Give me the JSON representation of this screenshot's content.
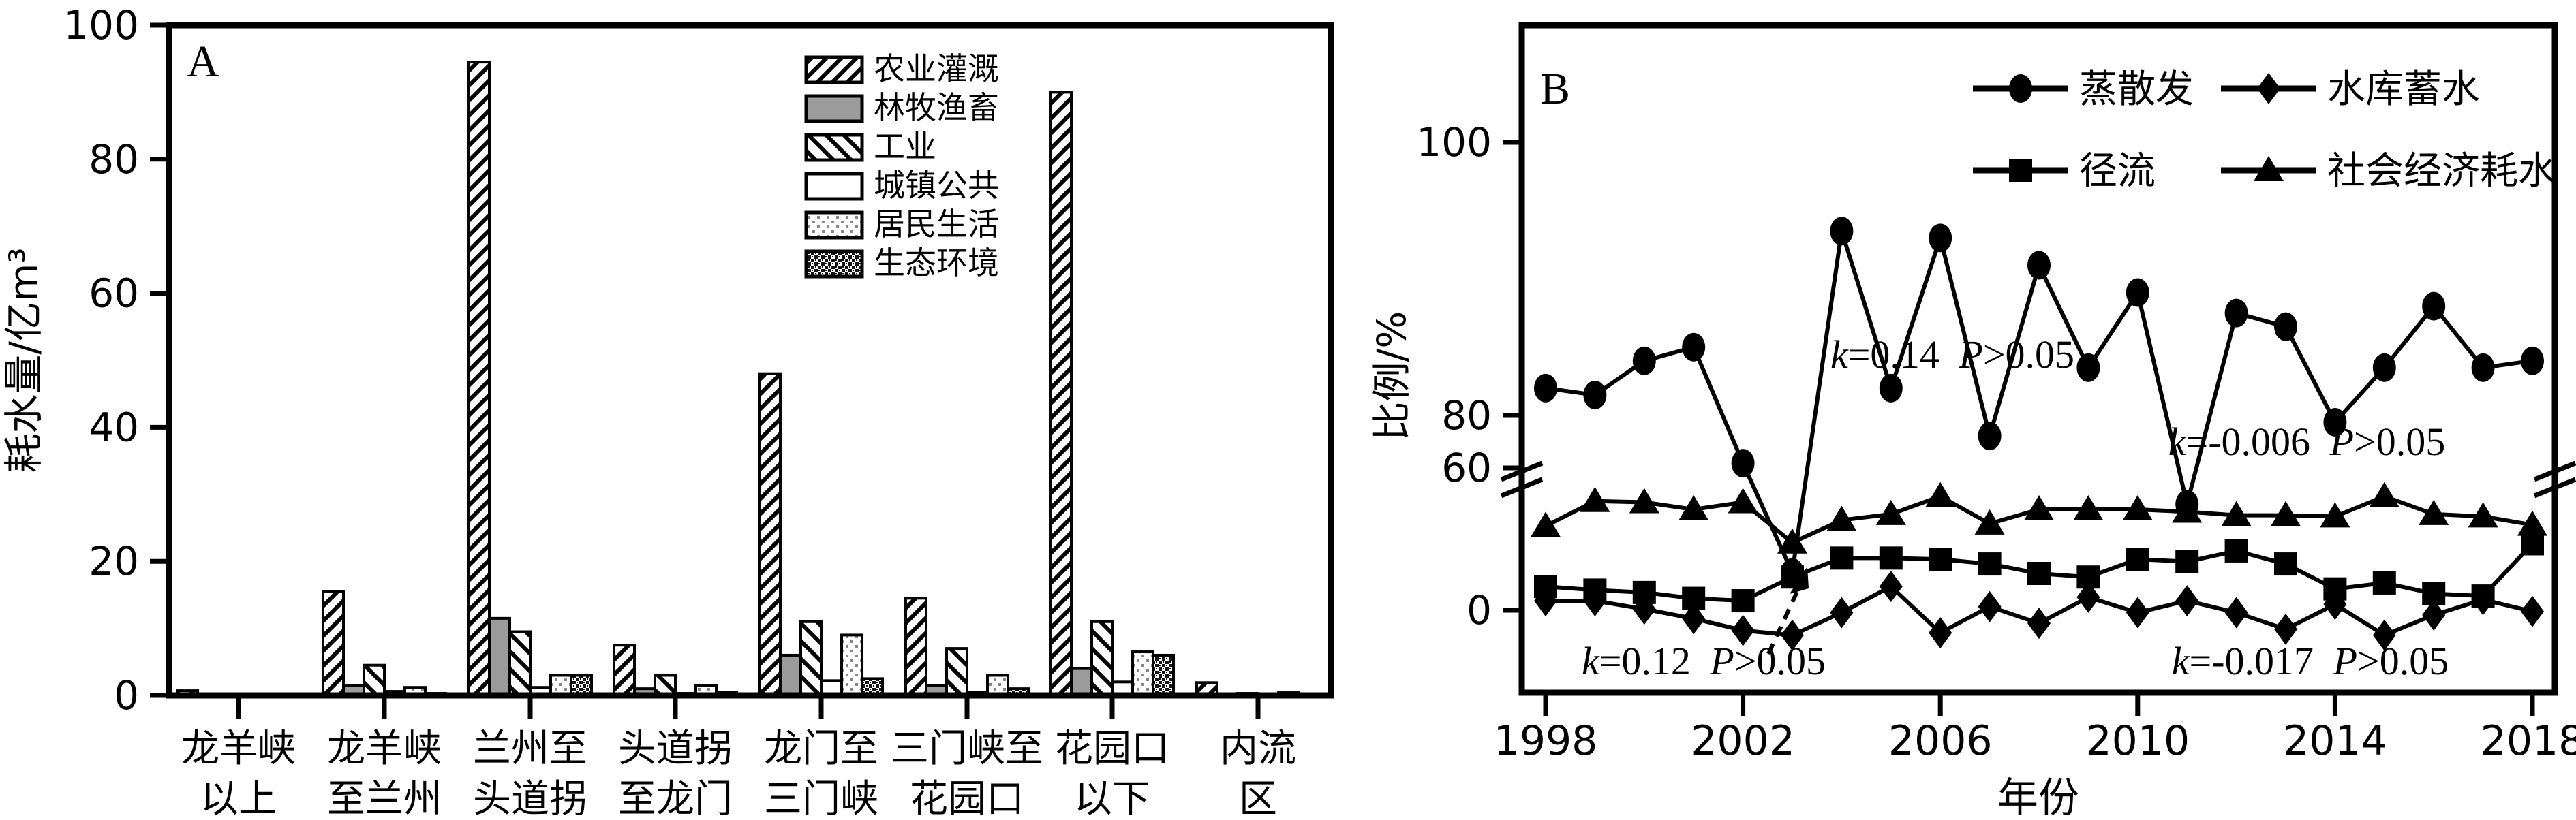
{
  "colors": {
    "ink": "#000000",
    "paper": "#ffffff",
    "gray_fill": "#9b9b9b",
    "stipple_light": "#888888",
    "stipple_dark": "#161616"
  },
  "chart_data": [
    {
      "type": "bar",
      "panel_label": "A",
      "title": "",
      "xlabel": "",
      "ylabel": "耗水量/亿m³",
      "ylim": [
        0,
        100
      ],
      "yticks": [
        0,
        20,
        40,
        60,
        80,
        100
      ],
      "grid": "off",
      "legend_position": "upper-middle-right-inside",
      "categories": [
        "龙羊峡\n以上",
        "龙羊峡\n至兰州",
        "兰州至\n头道拐",
        "头道拐\n至龙门",
        "龙门至\n三门峡",
        "三门峡至\n花园口",
        "花园口\n以下",
        "内流\n区"
      ],
      "series": [
        {
          "name": "农业灌溉",
          "fill": "hatch-forward",
          "values": [
            0.7,
            15.5,
            94.5,
            7.5,
            48,
            14.5,
            90,
            1.9
          ]
        },
        {
          "name": "林牧渔畜",
          "fill": "solid-gray",
          "values": [
            0.2,
            1.5,
            11.5,
            1.0,
            6.0,
            1.5,
            4.0,
            0.2
          ]
        },
        {
          "name": "工业",
          "fill": "hatch-back",
          "values": [
            0.1,
            4.5,
            9.5,
            3.0,
            11.0,
            7.0,
            11.0,
            0.3
          ]
        },
        {
          "name": "城镇公共",
          "fill": "solid-white",
          "values": [
            0.05,
            0.6,
            1.2,
            0.3,
            2.2,
            0.5,
            2.0,
            0.15
          ]
        },
        {
          "name": "居民生活",
          "fill": "stipple-light",
          "values": [
            0.1,
            1.2,
            3.0,
            1.5,
            9.0,
            3.0,
            6.5,
            0.4
          ]
        },
        {
          "name": "生态环境",
          "fill": "stipple-dark",
          "values": [
            0.05,
            0.3,
            3.0,
            0.5,
            2.5,
            1.0,
            6.0,
            0.1
          ]
        }
      ]
    },
    {
      "type": "line",
      "panel_label": "B",
      "title": "",
      "xlabel": "年份",
      "ylabel": "比例/%",
      "grid": "off",
      "legend_position": "top-inside-two-columns",
      "x": [
        1998,
        1999,
        2000,
        2001,
        2002,
        2003,
        2004,
        2005,
        2006,
        2007,
        2008,
        2009,
        2010,
        2011,
        2012,
        2013,
        2014,
        2015,
        2016,
        2017,
        2018
      ],
      "xticks": [
        1998,
        2002,
        2006,
        2010,
        2014,
        2018
      ],
      "y_axis": {
        "upper_ticks": [
          80,
          100
        ],
        "lower_ticks": [
          0,
          60
        ],
        "break_between": [
          60,
          80
        ],
        "note": "y axis has a break below 60; lower band 0-60 is compressed"
      },
      "series": [
        {
          "name": "蒸散发",
          "marker": "circle",
          "axis": "upper",
          "values": [
            82,
            81.5,
            84,
            85,
            76.5,
            68.5,
            93.5,
            82,
            93,
            78.5,
            91,
            83.5,
            89,
            73.5,
            87.5,
            86.5,
            79.5,
            83.5,
            88,
            83.5,
            84
          ]
        },
        {
          "name": "径流",
          "marker": "square",
          "axis": "lower",
          "values": [
            10,
            8.5,
            7.5,
            5,
            4,
            14,
            22,
            22,
            21.5,
            19.5,
            15.5,
            14,
            21.5,
            20.5,
            25,
            19.5,
            9,
            11.5,
            7,
            6,
            28
          ]
        },
        {
          "name": "水库蓄水",
          "marker": "diamond",
          "axis": "lower",
          "values": [
            4,
            4,
            0.5,
            -3.5,
            -8.5,
            -10.5,
            -1,
            10,
            -9.5,
            1.5,
            -5.5,
            5.5,
            -1,
            4,
            -1,
            -8,
            2.5,
            -10.5,
            -2,
            4.5,
            -0.5
          ]
        },
        {
          "name": "社会经济耗水",
          "marker": "triangle",
          "axis": "lower",
          "values": [
            35.5,
            46,
            45.5,
            42.5,
            45.5,
            28.5,
            38,
            40.5,
            48,
            36.5,
            42.5,
            42.5,
            42.5,
            41.5,
            40,
            40,
            39.5,
            48,
            40.5,
            39.5,
            36
          ]
        }
      ],
      "annotations": [
        {
          "text": "k=0.14 P>0.05",
          "position": "upper-band-middle"
        },
        {
          "text": "k=-0.006 P>0.05",
          "position": "above-break-right"
        },
        {
          "text": "k=0.12 P>0.05",
          "position": "lower-band-left"
        },
        {
          "text": "k=-0.017 P>0.05",
          "position": "lower-band-right"
        }
      ]
    }
  ]
}
